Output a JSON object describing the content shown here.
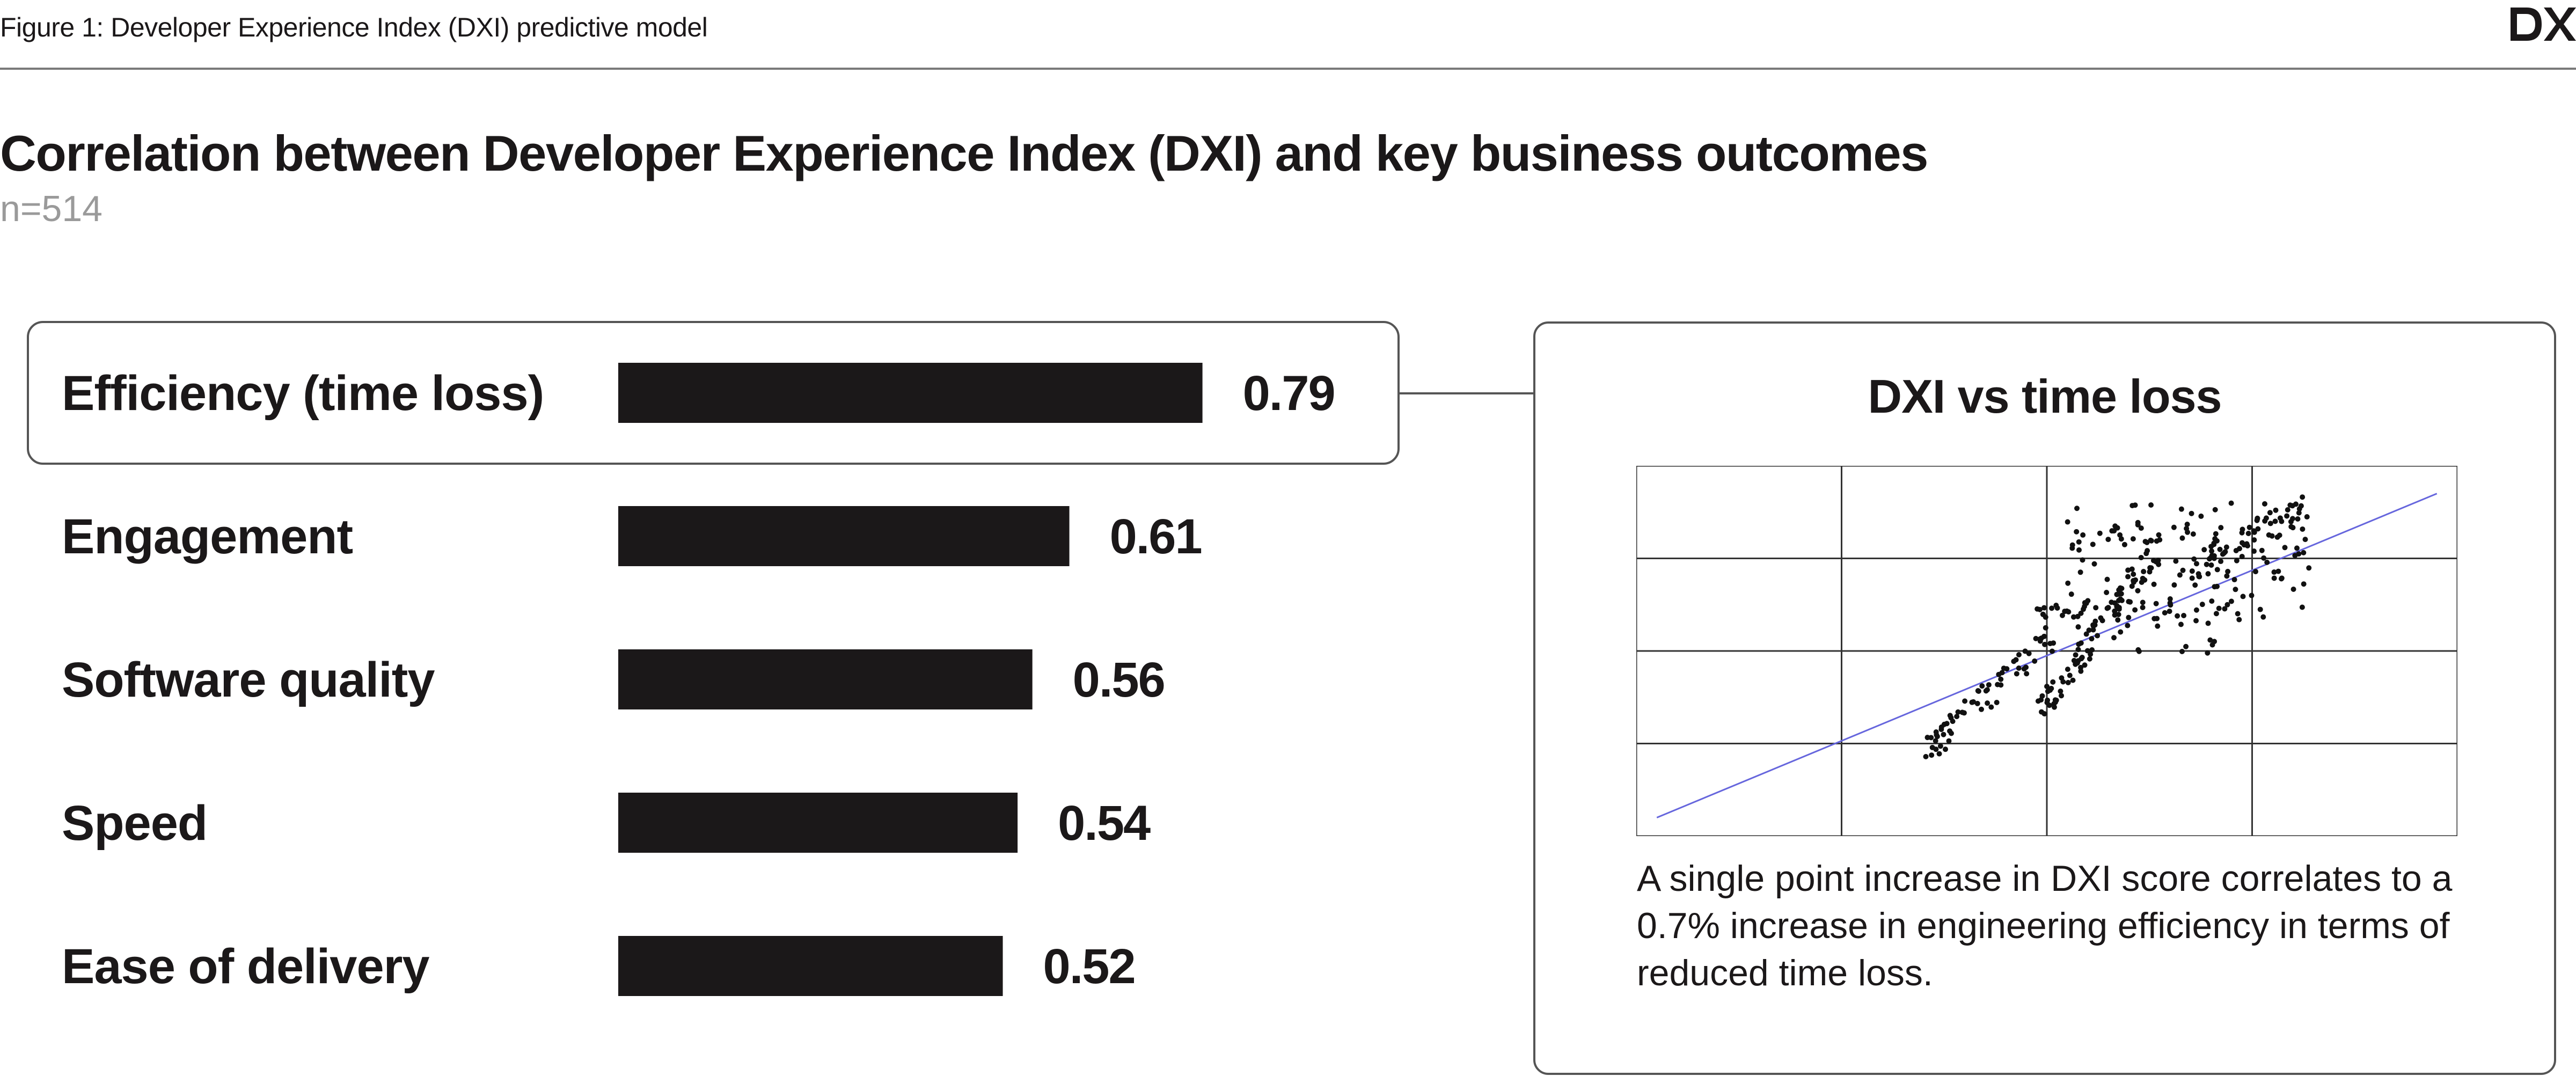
{
  "figure_caption": "Figure 1: Developer Experience Index (DXI) predictive model",
  "logo_text": "DX",
  "headline": "Correlation between Developer Experience Index (DXI) and key business outcomes",
  "sample_size": "n=514",
  "colors": {
    "bar": "#1b1819",
    "trend_line": "#6666dd",
    "points": "#111111",
    "grid": "#333333",
    "frame": "#555555"
  },
  "chart_data": [
    {
      "type": "bar",
      "orientation": "horizontal",
      "categories": [
        "Efficiency (time loss)",
        "Engagement",
        "Software quality",
        "Speed",
        "Ease of delivery"
      ],
      "values": [
        0.79,
        0.61,
        0.56,
        0.54,
        0.52
      ],
      "value_labels": [
        "0.79",
        "0.61",
        "0.56",
        "0.54",
        "0.52"
      ],
      "highlighted_category": "Efficiency (time loss)",
      "title": "",
      "xlabel": "",
      "ylabel": "",
      "grid": false,
      "legend": "none"
    },
    {
      "type": "scatter",
      "title": "DXI vs time loss",
      "xlabel": "",
      "ylabel": "",
      "xlim": [
        0,
        4
      ],
      "ylim": [
        0,
        4
      ],
      "grid": true,
      "grid_columns": 4,
      "grid_rows": 4,
      "axis_tick_labels": false,
      "trend_line": {
        "x": [
          0.1,
          3.9
        ],
        "y": [
          0.2,
          3.7
        ]
      },
      "clusters": [
        {
          "x_range": [
            1.4,
            2.05
          ],
          "y_range": [
            0.9,
            2.2
          ],
          "count": 70,
          "along_trend": true
        },
        {
          "x_range": [
            1.95,
            2.55
          ],
          "y_range": [
            1.3,
            3.1
          ],
          "count": 90,
          "along_trend": true
        },
        {
          "x_range": [
            2.1,
            3.3
          ],
          "y_range": [
            2.3,
            3.6
          ],
          "count": 110,
          "along_trend": false
        },
        {
          "x_range": [
            2.7,
            3.25
          ],
          "y_range": [
            2.85,
            3.55
          ],
          "count": 55,
          "along_trend": true
        },
        {
          "x_range": [
            2.15,
            2.9
          ],
          "y_range": [
            1.95,
            2.55
          ],
          "count": 35,
          "along_trend": false
        },
        {
          "x_range": [
            2.15,
            2.7
          ],
          "y_range": [
            3.15,
            3.4
          ],
          "count": 20,
          "along_trend": false
        },
        {
          "x_range": [
            1.95,
            2.2
          ],
          "y_range": [
            2.35,
            2.55
          ],
          "count": 20,
          "along_trend": false
        }
      ],
      "note": "A single point increase in DXI score correlates to a 0.7% increase in engineering efficiency in terms of reduced time loss."
    }
  ]
}
